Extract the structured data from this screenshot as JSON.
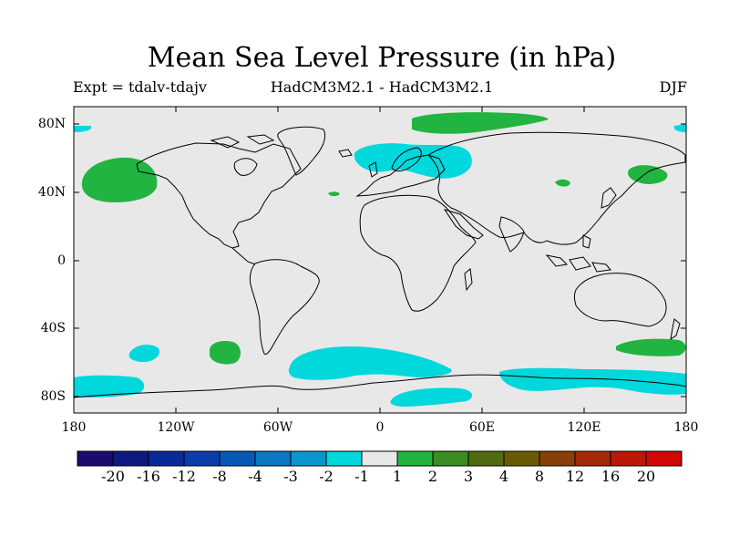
{
  "title": "Mean Sea Level Pressure (in hPa)",
  "experiment": "Expt = tdalv-tdajv",
  "models": "HadCM3M2.1 - HadCM3M2.1",
  "season": "DJF",
  "colors": {
    "background": "#e8e8e8",
    "negative_light": "#00d8dc",
    "positive_light": "#22b440",
    "coastline": "#000000"
  },
  "map": {
    "lon_range": [
      -180,
      180
    ],
    "lat_range": [
      -90,
      90
    ],
    "y_tick_labels": [
      "80N",
      "40N",
      "0",
      "40S",
      "80S"
    ],
    "x_tick_labels": [
      "180",
      "120W",
      "60W",
      "0",
      "60E",
      "120E",
      "180"
    ]
  },
  "anomaly_regions": [
    {
      "name": "arctic-siberia",
      "lon": 30,
      "lat": 85,
      "sign": "positive"
    },
    {
      "name": "north-pacific",
      "lon": -152,
      "lat": 45,
      "sign": "positive"
    },
    {
      "name": "northern-europe",
      "lon": 25,
      "lat": 62,
      "sign": "negative"
    },
    {
      "name": "northwest-pacific",
      "lon": 160,
      "lat": 50,
      "sign": "positive"
    },
    {
      "name": "south-atlantic",
      "lon": -15,
      "lat": -62,
      "sign": "negative"
    },
    {
      "name": "south-pacific-west",
      "lon": -95,
      "lat": -53,
      "sign": "positive"
    },
    {
      "name": "south-pacific-east",
      "lon": -145,
      "lat": -55,
      "sign": "negative"
    },
    {
      "name": "antarctic-circumpolar",
      "lon": 130,
      "lat": -72,
      "sign": "negative"
    },
    {
      "name": "south-west-pacific",
      "lon": 160,
      "lat": -52,
      "sign": "positive"
    }
  ],
  "colorbar": {
    "labels": [
      "-20",
      "-16",
      "-12",
      "-8",
      "-4",
      "-3",
      "-2",
      "-1",
      "1",
      "2",
      "3",
      "4",
      "8",
      "12",
      "16",
      "20"
    ],
    "colors": [
      "#1c0a6e",
      "#0e1a82",
      "#0a2a9a",
      "#0a3caa",
      "#0858b8",
      "#0a78c4",
      "#0898d0",
      "#00d8dc",
      "#e8e8e8",
      "#22b440",
      "#3c8c24",
      "#506c10",
      "#6a5a06",
      "#884008",
      "#a42a08",
      "#bc1808",
      "#d00808"
    ]
  }
}
